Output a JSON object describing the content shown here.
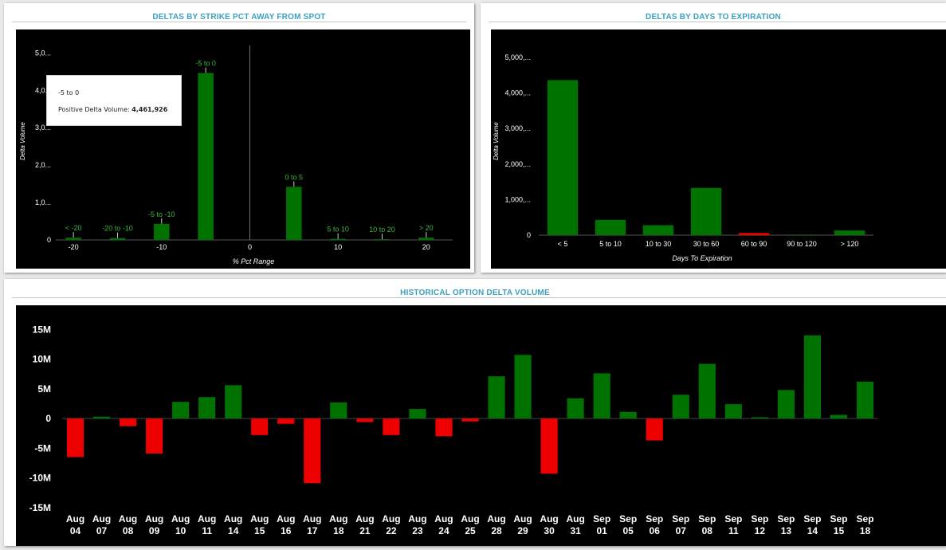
{
  "panels": {
    "strike": {
      "title": "DELTAS BY STRIKE PCT AWAY FROM SPOT",
      "xlabel": "% Pct Range",
      "ylabel": "Delta Volume",
      "tooltip": {
        "category": "-5 to 0",
        "label": "Positive Delta Volume:",
        "value": "4,461,926"
      }
    },
    "expiry": {
      "title": "DELTAS BY DAYS TO EXPIRATION",
      "xlabel": "Days To Expiration",
      "ylabel": "Delta Volume"
    },
    "history": {
      "title": "HISTORICAL OPTION DELTA VOLUME"
    }
  },
  "colors": {
    "positive": "#007200",
    "negative": "#ee0000",
    "title": "#3aa0bd",
    "label_green": "#3db83d"
  },
  "chart_data": [
    {
      "type": "bar",
      "title": "DELTAS BY STRIKE PCT AWAY FROM SPOT",
      "xlabel": "% Pct Range",
      "ylabel": "Delta Volume",
      "x_ticks": [
        "-20",
        "-10",
        "0",
        "10",
        "20"
      ],
      "y_ticks": [
        "0",
        "1,0...",
        "2,0...",
        "3,0...",
        "4,0...",
        "5,0..."
      ],
      "ylim": [
        0,
        5200000
      ],
      "bars": [
        {
          "label": "< -20",
          "center": -20,
          "value": 60000
        },
        {
          "label": "-20 to -10",
          "center": -15,
          "value": 50000
        },
        {
          "label": "-5 to -10",
          "center": -10,
          "value": 430000
        },
        {
          "label": "-5 to 0",
          "center": -5,
          "value": 4461926
        },
        {
          "label": "0 to 5",
          "center": 5,
          "value": 1420000
        },
        {
          "label": "5 to 10",
          "center": 10,
          "value": 30000
        },
        {
          "label": "10 to 20",
          "center": 15,
          "value": 20000
        },
        {
          "label": "> 20",
          "center": 20,
          "value": 60000
        }
      ]
    },
    {
      "type": "bar",
      "title": "DELTAS BY DAYS TO EXPIRATION",
      "xlabel": "Days To Expiration",
      "ylabel": "Delta Volume",
      "y_ticks": [
        "0",
        "1,000,...",
        "2,000,...",
        "3,000,...",
        "4,000,...",
        "5,000,..."
      ],
      "ylim": [
        0,
        5400000
      ],
      "categories": [
        "< 5",
        "5 to 10",
        "10 to 30",
        "30 to 60",
        "60 to 90",
        "90 to 120",
        "> 120"
      ],
      "values": [
        4360000,
        430000,
        280000,
        1330000,
        60000,
        15000,
        130000
      ],
      "colors": [
        "positive",
        "positive",
        "positive",
        "positive",
        "negative",
        "positive",
        "positive"
      ]
    },
    {
      "type": "bar",
      "title": "HISTORICAL OPTION DELTA VOLUME",
      "y_ticks": [
        "-15M",
        "-10M",
        "-5M",
        "0",
        "5M",
        "10M",
        "15M"
      ],
      "ylim": [
        -15000000,
        15000000
      ],
      "categories": [
        [
          "Aug",
          "04"
        ],
        [
          "Aug",
          "07"
        ],
        [
          "Aug",
          "08"
        ],
        [
          "Aug",
          "09"
        ],
        [
          "Aug",
          "10"
        ],
        [
          "Aug",
          "11"
        ],
        [
          "Aug",
          "14"
        ],
        [
          "Aug",
          "15"
        ],
        [
          "Aug",
          "16"
        ],
        [
          "Aug",
          "17"
        ],
        [
          "Aug",
          "18"
        ],
        [
          "Aug",
          "21"
        ],
        [
          "Aug",
          "22"
        ],
        [
          "Aug",
          "23"
        ],
        [
          "Aug",
          "24"
        ],
        [
          "Aug",
          "25"
        ],
        [
          "Aug",
          "28"
        ],
        [
          "Aug",
          "29"
        ],
        [
          "Aug",
          "30"
        ],
        [
          "Aug",
          "31"
        ],
        [
          "Sep",
          "01"
        ],
        [
          "Sep",
          "05"
        ],
        [
          "Sep",
          "06"
        ],
        [
          "Sep",
          "07"
        ],
        [
          "Sep",
          "08"
        ],
        [
          "Sep",
          "11"
        ],
        [
          "Sep",
          "12"
        ],
        [
          "Sep",
          "13"
        ],
        [
          "Sep",
          "14"
        ],
        [
          "Sep",
          "15"
        ],
        [
          "Sep",
          "18"
        ]
      ],
      "values": [
        -6500000,
        300000,
        -1300000,
        -5900000,
        2800000,
        3600000,
        5600000,
        -2800000,
        -900000,
        -10900000,
        2700000,
        -600000,
        -2800000,
        1600000,
        -3000000,
        -500000,
        7100000,
        10700000,
        -9300000,
        3400000,
        7600000,
        1100000,
        -3700000,
        4000000,
        9200000,
        2400000,
        200000,
        4800000,
        14000000,
        600000,
        6200000
      ]
    }
  ]
}
